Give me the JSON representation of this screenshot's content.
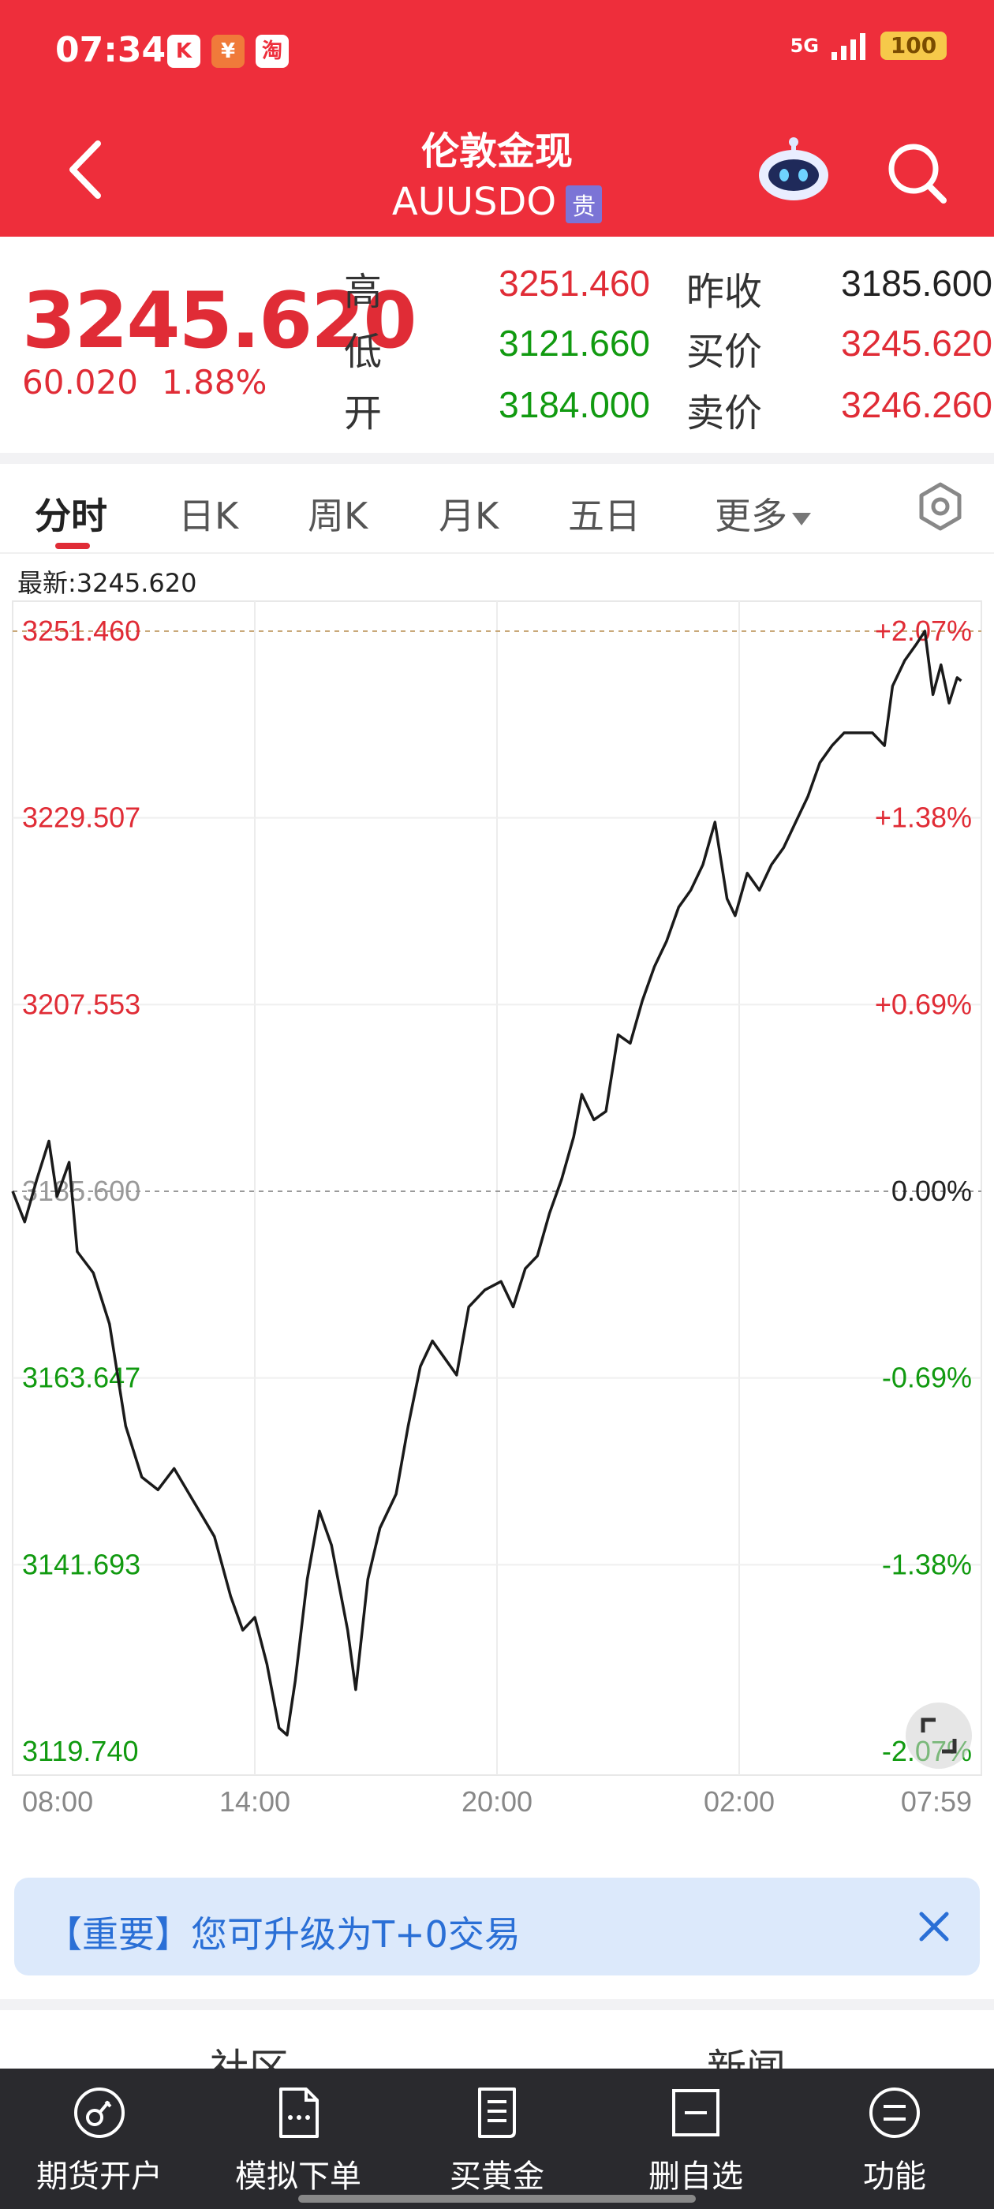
{
  "status": {
    "time": "07:34",
    "icons": [
      "K",
      "¥",
      "淘"
    ],
    "network": "5G",
    "battery": "100"
  },
  "header": {
    "title": "伦敦金现",
    "subtitle": "AUUSDO",
    "badge": "贵"
  },
  "quote": {
    "price": "3245.620",
    "change": "60.020",
    "change_pct": "1.88%",
    "high_label": "高",
    "high": "3251.460",
    "low_label": "低",
    "low": "3121.660",
    "open_label": "开",
    "open": "3184.000",
    "prev_close_label": "昨收",
    "prev_close": "3185.600",
    "bid_label": "买价",
    "bid": "3245.620",
    "ask_label": "卖价",
    "ask": "3246.260"
  },
  "tabs": [
    {
      "label": "分时"
    },
    {
      "label": "日K"
    },
    {
      "label": "周K"
    },
    {
      "label": "月K"
    },
    {
      "label": "五日"
    },
    {
      "label": "更多"
    }
  ],
  "chart_header": {
    "latest": "最新:3245.620"
  },
  "chart_data": {
    "type": "line",
    "title": "",
    "ylim": [
      3119.74,
      3251.46
    ],
    "reference": 3185.6,
    "y_ticks": [
      "3251.460",
      "3229.507",
      "3207.553",
      "3185.600",
      "3163.647",
      "3141.693",
      "3119.740"
    ],
    "pct_ticks": [
      "+2.07%",
      "+1.38%",
      "+0.69%",
      "0.00%",
      "-0.69%",
      "-1.38%",
      "-2.07%"
    ],
    "x_ticks": [
      "08:00",
      "14:00",
      "20:00",
      "02:00",
      "07:59"
    ],
    "x_range_hours": [
      0,
      24
    ],
    "series": [
      {
        "points": [
          [
            0.0,
            3185.6
          ],
          [
            0.3,
            3182.0
          ],
          [
            0.6,
            3187.0
          ],
          [
            0.9,
            3191.5
          ],
          [
            1.1,
            3185.0
          ],
          [
            1.4,
            3189.0
          ],
          [
            1.6,
            3178.5
          ],
          [
            2.0,
            3176.0
          ],
          [
            2.4,
            3170.0
          ],
          [
            2.8,
            3158.0
          ],
          [
            3.2,
            3152.0
          ],
          [
            3.6,
            3150.5
          ],
          [
            4.0,
            3153.0
          ],
          [
            4.5,
            3149.0
          ],
          [
            5.0,
            3145.0
          ],
          [
            5.4,
            3138.0
          ],
          [
            5.7,
            3134.0
          ],
          [
            6.0,
            3135.5
          ],
          [
            6.3,
            3130.0
          ],
          [
            6.6,
            3122.5
          ],
          [
            6.8,
            3121.66
          ],
          [
            7.0,
            3128.0
          ],
          [
            7.3,
            3140.0
          ],
          [
            7.6,
            3148.0
          ],
          [
            7.9,
            3144.0
          ],
          [
            8.1,
            3139.0
          ],
          [
            8.3,
            3134.0
          ],
          [
            8.5,
            3127.0
          ],
          [
            8.8,
            3140.0
          ],
          [
            9.1,
            3146.0
          ],
          [
            9.5,
            3150.0
          ],
          [
            9.8,
            3158.0
          ],
          [
            10.1,
            3165.0
          ],
          [
            10.4,
            3168.0
          ],
          [
            10.7,
            3166.0
          ],
          [
            11.0,
            3164.0
          ],
          [
            11.3,
            3172.0
          ],
          [
            11.7,
            3174.0
          ],
          [
            12.1,
            3175.0
          ],
          [
            12.4,
            3172.0
          ],
          [
            12.7,
            3176.5
          ],
          [
            13.0,
            3178.0
          ],
          [
            13.3,
            3183.0
          ],
          [
            13.6,
            3187.0
          ],
          [
            13.9,
            3192.0
          ],
          [
            14.1,
            3197.0
          ],
          [
            14.4,
            3194.0
          ],
          [
            14.7,
            3195.0
          ],
          [
            15.0,
            3204.0
          ],
          [
            15.3,
            3203.0
          ],
          [
            15.6,
            3208.0
          ],
          [
            15.9,
            3212.0
          ],
          [
            16.2,
            3215.0
          ],
          [
            16.5,
            3219.0
          ],
          [
            16.8,
            3221.0
          ],
          [
            17.1,
            3224.0
          ],
          [
            17.4,
            3229.0
          ],
          [
            17.7,
            3220.0
          ],
          [
            17.9,
            3218.0
          ],
          [
            18.2,
            3223.0
          ],
          [
            18.5,
            3221.0
          ],
          [
            18.8,
            3224.0
          ],
          [
            19.1,
            3226.0
          ],
          [
            19.4,
            3229.0
          ],
          [
            19.7,
            3232.0
          ],
          [
            20.0,
            3236.0
          ],
          [
            20.3,
            3238.0
          ],
          [
            20.6,
            3239.5
          ],
          [
            21.0,
            3239.5
          ],
          [
            21.3,
            3239.5
          ],
          [
            21.6,
            3238.0
          ],
          [
            21.8,
            3245.0
          ],
          [
            22.1,
            3248.0
          ],
          [
            22.4,
            3250.0
          ],
          [
            22.6,
            3251.46
          ],
          [
            22.8,
            3244.0
          ],
          [
            23.0,
            3247.5
          ],
          [
            23.2,
            3243.0
          ],
          [
            23.4,
            3246.0
          ],
          [
            23.5,
            3245.62
          ]
        ]
      }
    ]
  },
  "notice": {
    "text": "【重要】您可升级为T+0交易"
  },
  "section_peek": {
    "left": "社区",
    "right": "新闻"
  },
  "bottom_nav": [
    {
      "label": "期货开户",
      "icon": "account-icon"
    },
    {
      "label": "模拟下单",
      "icon": "document-icon"
    },
    {
      "label": "买黄金",
      "icon": "news-icon"
    },
    {
      "label": "删自选",
      "icon": "remove-watch-icon"
    },
    {
      "label": "功能",
      "icon": "menu-icon"
    }
  ],
  "colors": {
    "brand_red": "#ee2e3b",
    "up": "#e02c36",
    "down": "#119a10",
    "nav_bg": "#2a2a2e",
    "notice_bg": "#dce9fb",
    "notice_text": "#2a6fd6"
  }
}
